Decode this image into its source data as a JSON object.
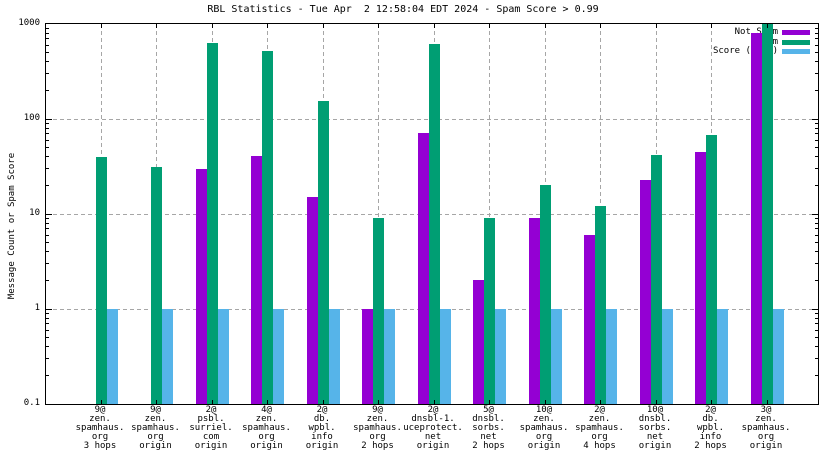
{
  "title": "RBL Statistics - Tue Apr  2 12:58:04 EDT 2024 - Spam Score > 0.99",
  "y_axis": {
    "label": "Message Count or Spam Score",
    "tick_labels": [
      "1000",
      "100",
      "10",
      "1",
      "0.1"
    ],
    "tick_values": [
      1000,
      100,
      10,
      1,
      0.1
    ]
  },
  "legend": {
    "position": "top-right",
    "entries": [
      {
        "label": "Not Spam",
        "color": "#9400d3"
      },
      {
        "label": "Spam",
        "color": "#009e73"
      },
      {
        "label": "Score (0..1)",
        "color": "#56b4e9"
      }
    ]
  },
  "chart_data": {
    "type": "bar",
    "title": "RBL Statistics - Tue Apr  2 12:58:04 EDT 2024 - Spam Score > 0.99",
    "xlabel": "",
    "ylabel": "Message Count or Spam Score",
    "y_scale": "log",
    "ylim": [
      0.1,
      1000
    ],
    "grid": true,
    "legend_position": "top-right",
    "categories": [
      [
        "9@",
        "zen.",
        "spamhaus.",
        "org",
        "3 hops"
      ],
      [
        "9@",
        "zen.",
        "spamhaus.",
        "org",
        "origin"
      ],
      [
        "2@",
        "psbl.",
        "surriel.",
        "com",
        "origin"
      ],
      [
        "4@",
        "zen.",
        "spamhaus.",
        "org",
        "origin"
      ],
      [
        "2@",
        "db.",
        "wpbl.",
        "info",
        "origin"
      ],
      [
        "9@",
        "zen.",
        "spamhaus.",
        "org",
        "2 hops"
      ],
      [
        "2@",
        "dnsbl-1.",
        "uceprotect.",
        "net",
        "origin"
      ],
      [
        "5@",
        "dnsbl.",
        "sorbs.",
        "net",
        "2 hops"
      ],
      [
        "10@",
        "zen.",
        "spamhaus.",
        "org",
        "origin"
      ],
      [
        "2@",
        "zen.",
        "spamhaus.",
        "org",
        "4 hops"
      ],
      [
        "10@",
        "dnsbl.",
        "sorbs.",
        "net",
        "origin"
      ],
      [
        "2@",
        "db.",
        "wpbl.",
        "info",
        "2 hops"
      ],
      [
        "3@",
        "zen.",
        "spamhaus.",
        "org",
        "origin"
      ]
    ],
    "series": [
      {
        "name": "Not Spam",
        "color": "#9400d3",
        "values": [
          null,
          null,
          30,
          41,
          15,
          1,
          72,
          2,
          9,
          6,
          23,
          45,
          800
        ]
      },
      {
        "name": "Spam",
        "color": "#009e73",
        "values": [
          40,
          31,
          630,
          520,
          155,
          9,
          610,
          9,
          20,
          12,
          42,
          68,
          1000
        ]
      },
      {
        "name": "Score (0..1)",
        "color": "#56b4e9",
        "values": [
          1,
          1,
          1,
          1,
          1,
          1,
          1,
          1,
          1,
          1,
          1,
          1,
          1
        ]
      }
    ]
  }
}
